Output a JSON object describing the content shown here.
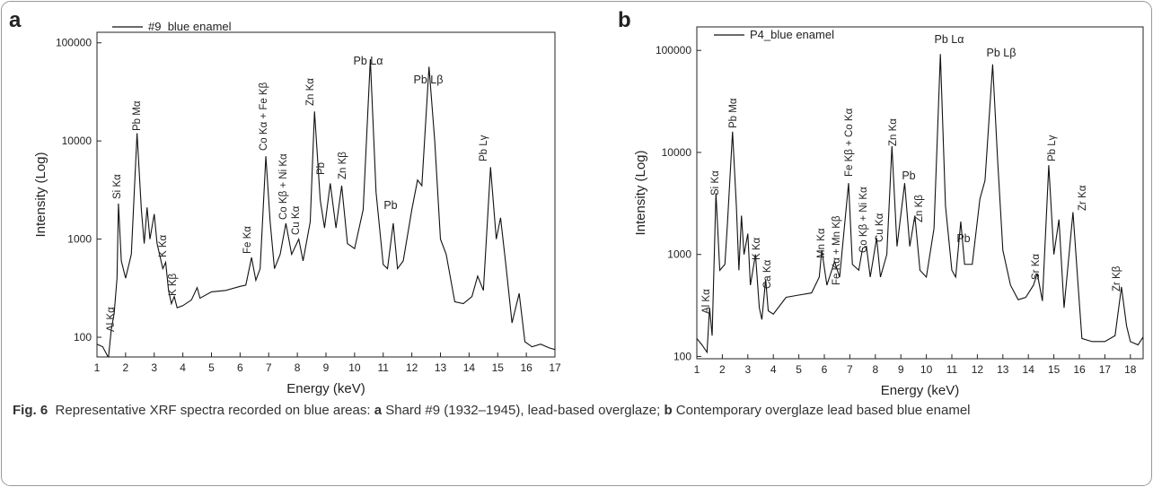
{
  "chart_data": [
    {
      "type": "line",
      "panel": "a",
      "log_y": true,
      "ylabel": "Intensity (Log)",
      "xlabel": "Energy (keV)",
      "xlim": [
        1,
        17
      ],
      "xticks": [
        1,
        2,
        3,
        4,
        5,
        6,
        7,
        8,
        9,
        10,
        11,
        12,
        13,
        14,
        15,
        16,
        17
      ],
      "ylim": [
        63,
        128000
      ],
      "yticks": [
        100,
        1000,
        10000,
        100000
      ],
      "x": [
        1.0,
        1.2,
        1.4,
        1.5,
        1.6,
        1.7,
        1.75,
        1.85,
        2.0,
        2.2,
        2.4,
        2.55,
        2.65,
        2.75,
        2.85,
        3.0,
        3.1,
        3.3,
        3.4,
        3.5,
        3.6,
        3.7,
        3.8,
        4.0,
        4.3,
        4.5,
        4.6,
        5.0,
        5.5,
        6.0,
        6.2,
        6.4,
        6.55,
        6.7,
        6.9,
        7.05,
        7.2,
        7.4,
        7.6,
        7.8,
        8.05,
        8.2,
        8.45,
        8.6,
        8.8,
        8.95,
        9.15,
        9.35,
        9.55,
        9.75,
        10.0,
        10.3,
        10.55,
        10.75,
        11.0,
        11.15,
        11.35,
        11.5,
        11.7,
        12.0,
        12.2,
        12.35,
        12.6,
        12.8,
        13.0,
        13.2,
        13.5,
        13.8,
        14.1,
        14.3,
        14.5,
        14.75,
        14.95,
        15.1,
        15.3,
        15.5,
        15.75,
        15.95,
        16.2,
        16.5,
        16.8,
        17.0
      ],
      "series": [
        {
          "name": "#9_blue enamel",
          "color": "#111111",
          "values": [
            85,
            80,
            62,
            120,
            175,
            400,
            2300,
            600,
            400,
            700,
            12000,
            2000,
            900,
            2100,
            1000,
            1800,
            900,
            500,
            580,
            300,
            220,
            260,
            200,
            210,
            240,
            320,
            250,
            290,
            300,
            330,
            340,
            650,
            380,
            500,
            7000,
            1500,
            500,
            700,
            1450,
            700,
            1000,
            600,
            1500,
            20000,
            2500,
            1300,
            3700,
            1300,
            3500,
            900,
            800,
            2000,
            68000,
            3000,
            550,
            500,
            1450,
            500,
            600,
            2000,
            4000,
            3500,
            57000,
            10000,
            1000,
            700,
            230,
            220,
            260,
            420,
            300,
            5400,
            1000,
            1650,
            500,
            140,
            280,
            90,
            80,
            85,
            78,
            75
          ]
        }
      ],
      "annotations": [
        "Al Kα",
        "Si Kα",
        "Pb Mα",
        "K Kα",
        "K Kβ",
        "Fe Kα",
        "Co Kα + Fe Kβ",
        "Co Kβ + Ni Kα",
        "Cu Kα",
        "Zn Kα",
        "Pb",
        "Zn Kβ",
        "Pb Lα",
        "Pb",
        "Pb Lβ",
        "Pb Lγ"
      ]
    },
    {
      "type": "line",
      "panel": "b",
      "log_y": true,
      "ylabel": "Intensity (Log)",
      "xlabel": "Energy (keV)",
      "xlim": [
        1,
        18.5
      ],
      "xticks": [
        1,
        2,
        3,
        4,
        5,
        6,
        7,
        8,
        9,
        10,
        11,
        12,
        13,
        14,
        15,
        16,
        17,
        18
      ],
      "ylim": [
        95,
        170000
      ],
      "yticks": [
        100,
        1000,
        10000,
        100000
      ],
      "x": [
        1.0,
        1.2,
        1.4,
        1.5,
        1.6,
        1.75,
        1.9,
        2.1,
        2.2,
        2.4,
        2.55,
        2.65,
        2.75,
        2.85,
        3.0,
        3.1,
        3.3,
        3.45,
        3.55,
        3.7,
        3.8,
        4.0,
        4.5,
        5.0,
        5.5,
        5.8,
        5.9,
        6.1,
        6.4,
        6.6,
        6.95,
        7.1,
        7.35,
        7.5,
        7.65,
        7.8,
        8.05,
        8.2,
        8.45,
        8.65,
        8.85,
        9.15,
        9.35,
        9.55,
        9.75,
        10.0,
        10.3,
        10.55,
        10.75,
        11.0,
        11.15,
        11.35,
        11.5,
        11.8,
        12.1,
        12.3,
        12.6,
        12.8,
        13.0,
        13.3,
        13.6,
        13.9,
        14.2,
        14.35,
        14.55,
        14.8,
        15.0,
        15.2,
        15.4,
        15.75,
        15.95,
        16.1,
        16.5,
        17.0,
        17.4,
        17.65,
        17.85,
        18.0,
        18.3,
        18.5
      ],
      "series": [
        {
          "name": "P4_blue enamel",
          "color": "#111111",
          "values": [
            150,
            130,
            110,
            300,
            160,
            4000,
            700,
            800,
            2000,
            16000,
            3000,
            700,
            2400,
            1000,
            1600,
            500,
            1000,
            300,
            230,
            570,
            280,
            260,
            380,
            400,
            420,
            600,
            1100,
            500,
            850,
            600,
            5000,
            800,
            700,
            1150,
            1200,
            600,
            1450,
            600,
            1000,
            11500,
            1200,
            5000,
            1200,
            2400,
            700,
            600,
            1800,
            92000,
            3000,
            700,
            600,
            2100,
            800,
            800,
            3500,
            5300,
            73000,
            8000,
            1100,
            500,
            360,
            380,
            500,
            650,
            350,
            7500,
            1000,
            2200,
            300,
            2600,
            500,
            150,
            140,
            140,
            160,
            480,
            200,
            140,
            130,
            155
          ]
        }
      ],
      "annotations": [
        "Al Kα",
        "Si Kα",
        "Pb Mα",
        "K Kα",
        "Ca Kα",
        "Mn Kα",
        "Fe Kα + Mn Kβ",
        "Fe Kβ + Co Kα",
        "Co Kβ + Ni Kα",
        "Cu Kα",
        "Zn Kα",
        "Pb",
        "Zn Kβ",
        "Pb Lα",
        "Pb",
        "Pb Lβ",
        "Sr Kα",
        "Pb Lγ",
        "Zr Kα",
        "Zr Kβ"
      ]
    }
  ],
  "caption": {
    "label": "Fig. 6",
    "parts": [
      "Representative XRF spectra recorded on blue areas: ",
      "a",
      " Shard #9 (1932–1945), lead-based overglaze; ",
      "b",
      " Contemporary overglaze lead based blue enamel"
    ]
  }
}
